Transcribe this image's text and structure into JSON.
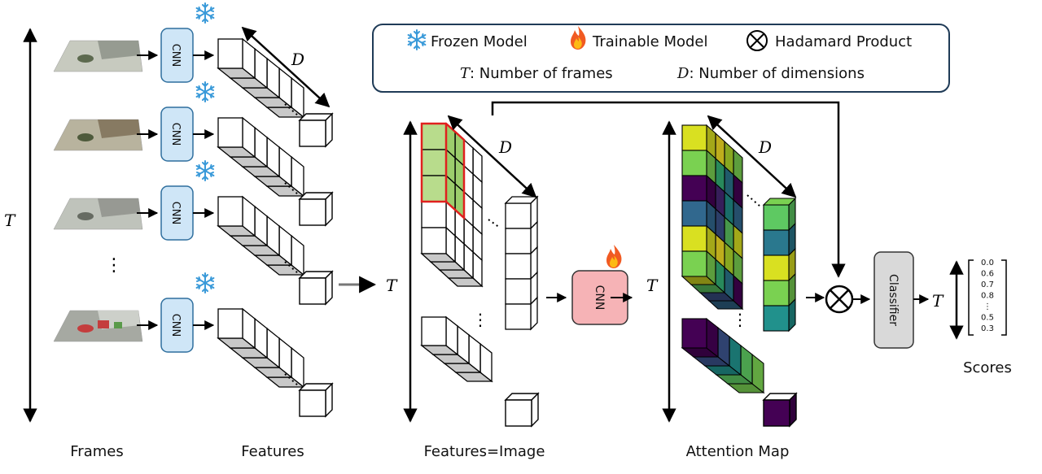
{
  "legend": {
    "frozen_label": "Frozen Model",
    "trainable_label": "Trainable Model",
    "hadamard_label": "Hadamard Product",
    "t_symbol": "T",
    "t_description": ": Number of frames",
    "d_symbol": "D",
    "d_description": ": Number of dimensions",
    "frozen_icon": "snowflake-icon",
    "trainable_icon": "fire-icon",
    "hadamard_icon": "circled-x-icon"
  },
  "axes": {
    "t_label": "T",
    "d_label": "D"
  },
  "frames_column": {
    "caption": "Frames",
    "cnn_label": "CNN",
    "ellipsis": "⋮",
    "frame_count_shown": 4
  },
  "features_column": {
    "caption": "Features"
  },
  "image_stage": {
    "caption": "Features=Image",
    "cnn_label": "CNN",
    "ellipsis": "⋮"
  },
  "attention_stage": {
    "caption": "Attention Map",
    "ellipsis": "⋮"
  },
  "classifier": {
    "label": "Classifier"
  },
  "scores": {
    "caption": "Scores",
    "values": [
      "0.0",
      "0.6",
      "0.7",
      "0.8",
      "⋮",
      "0.5",
      "0.3"
    ]
  },
  "colors": {
    "frozen_box_fill": "#cfe6f7",
    "frozen_box_stroke": "#2f6f9e",
    "trainable_box_fill": "#f6b3b6",
    "classifier_fill": "#d9d9d9",
    "legend_stroke": "#1f3b57",
    "highlight_red": "#e0201e",
    "highlight_green": "#b8dc8c",
    "cube_bottom": "#c8c8c8"
  }
}
